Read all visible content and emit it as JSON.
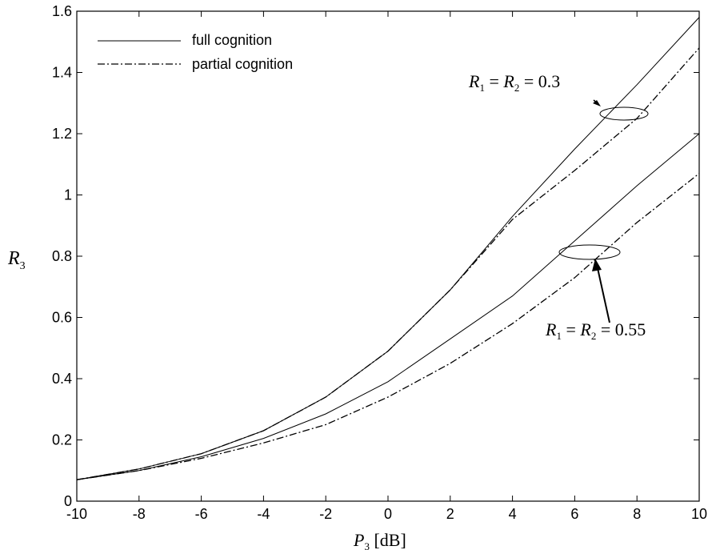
{
  "chart_data": {
    "type": "line",
    "xlabel": {
      "symbol": "P",
      "subscript": "3",
      "unit": "[dB]"
    },
    "ylabel": {
      "symbol": "R",
      "subscript": "3"
    },
    "xlim": [
      -10,
      10
    ],
    "ylim": [
      0,
      1.6
    ],
    "x_ticks": [
      "-10",
      "-8",
      "-6",
      "-4",
      "-2",
      "0",
      "2",
      "4",
      "6",
      "8",
      "10"
    ],
    "y_ticks": [
      "0",
      "0.2",
      "0.4",
      "0.6",
      "0.8",
      "1",
      "1.2",
      "1.4",
      "1.6"
    ],
    "grid": false,
    "legend": {
      "position": "top-left",
      "entries": [
        {
          "label": "full cognition",
          "style": "solid"
        },
        {
          "label": "partial cognition",
          "style": "dash-dot"
        }
      ]
    },
    "x": [
      -10,
      -8,
      -6,
      -4,
      -2,
      0,
      2,
      4,
      6,
      8,
      10
    ],
    "series": [
      {
        "legend": "full cognition",
        "group": "0.3",
        "style": "solid",
        "values": [
          0.07,
          0.105,
          0.155,
          0.23,
          0.34,
          0.49,
          0.69,
          0.93,
          1.15,
          1.36,
          1.58
        ]
      },
      {
        "legend": "partial cognition",
        "group": "0.3",
        "style": "dash-dot",
        "values": [
          0.07,
          0.105,
          0.155,
          0.23,
          0.34,
          0.49,
          0.69,
          0.92,
          1.08,
          1.25,
          1.48
        ]
      },
      {
        "legend": "full cognition",
        "group": "0.55",
        "style": "solid",
        "values": [
          0.07,
          0.1,
          0.145,
          0.205,
          0.285,
          0.39,
          0.53,
          0.67,
          0.85,
          1.03,
          1.2
        ]
      },
      {
        "legend": "partial cognition",
        "group": "0.55",
        "style": "dash-dot",
        "values": [
          0.07,
          0.1,
          0.14,
          0.19,
          0.25,
          0.34,
          0.45,
          0.58,
          0.73,
          0.91,
          1.07
        ]
      }
    ],
    "annotations": [
      {
        "group": "0.3",
        "lhs1": "R",
        "sub1": "1",
        "lhs2": "R",
        "sub2": "2",
        "value": "0.3"
      },
      {
        "group": "0.55",
        "lhs1": "R",
        "sub1": "1",
        "lhs2": "R",
        "sub2": "2",
        "value": "0.55"
      }
    ]
  }
}
